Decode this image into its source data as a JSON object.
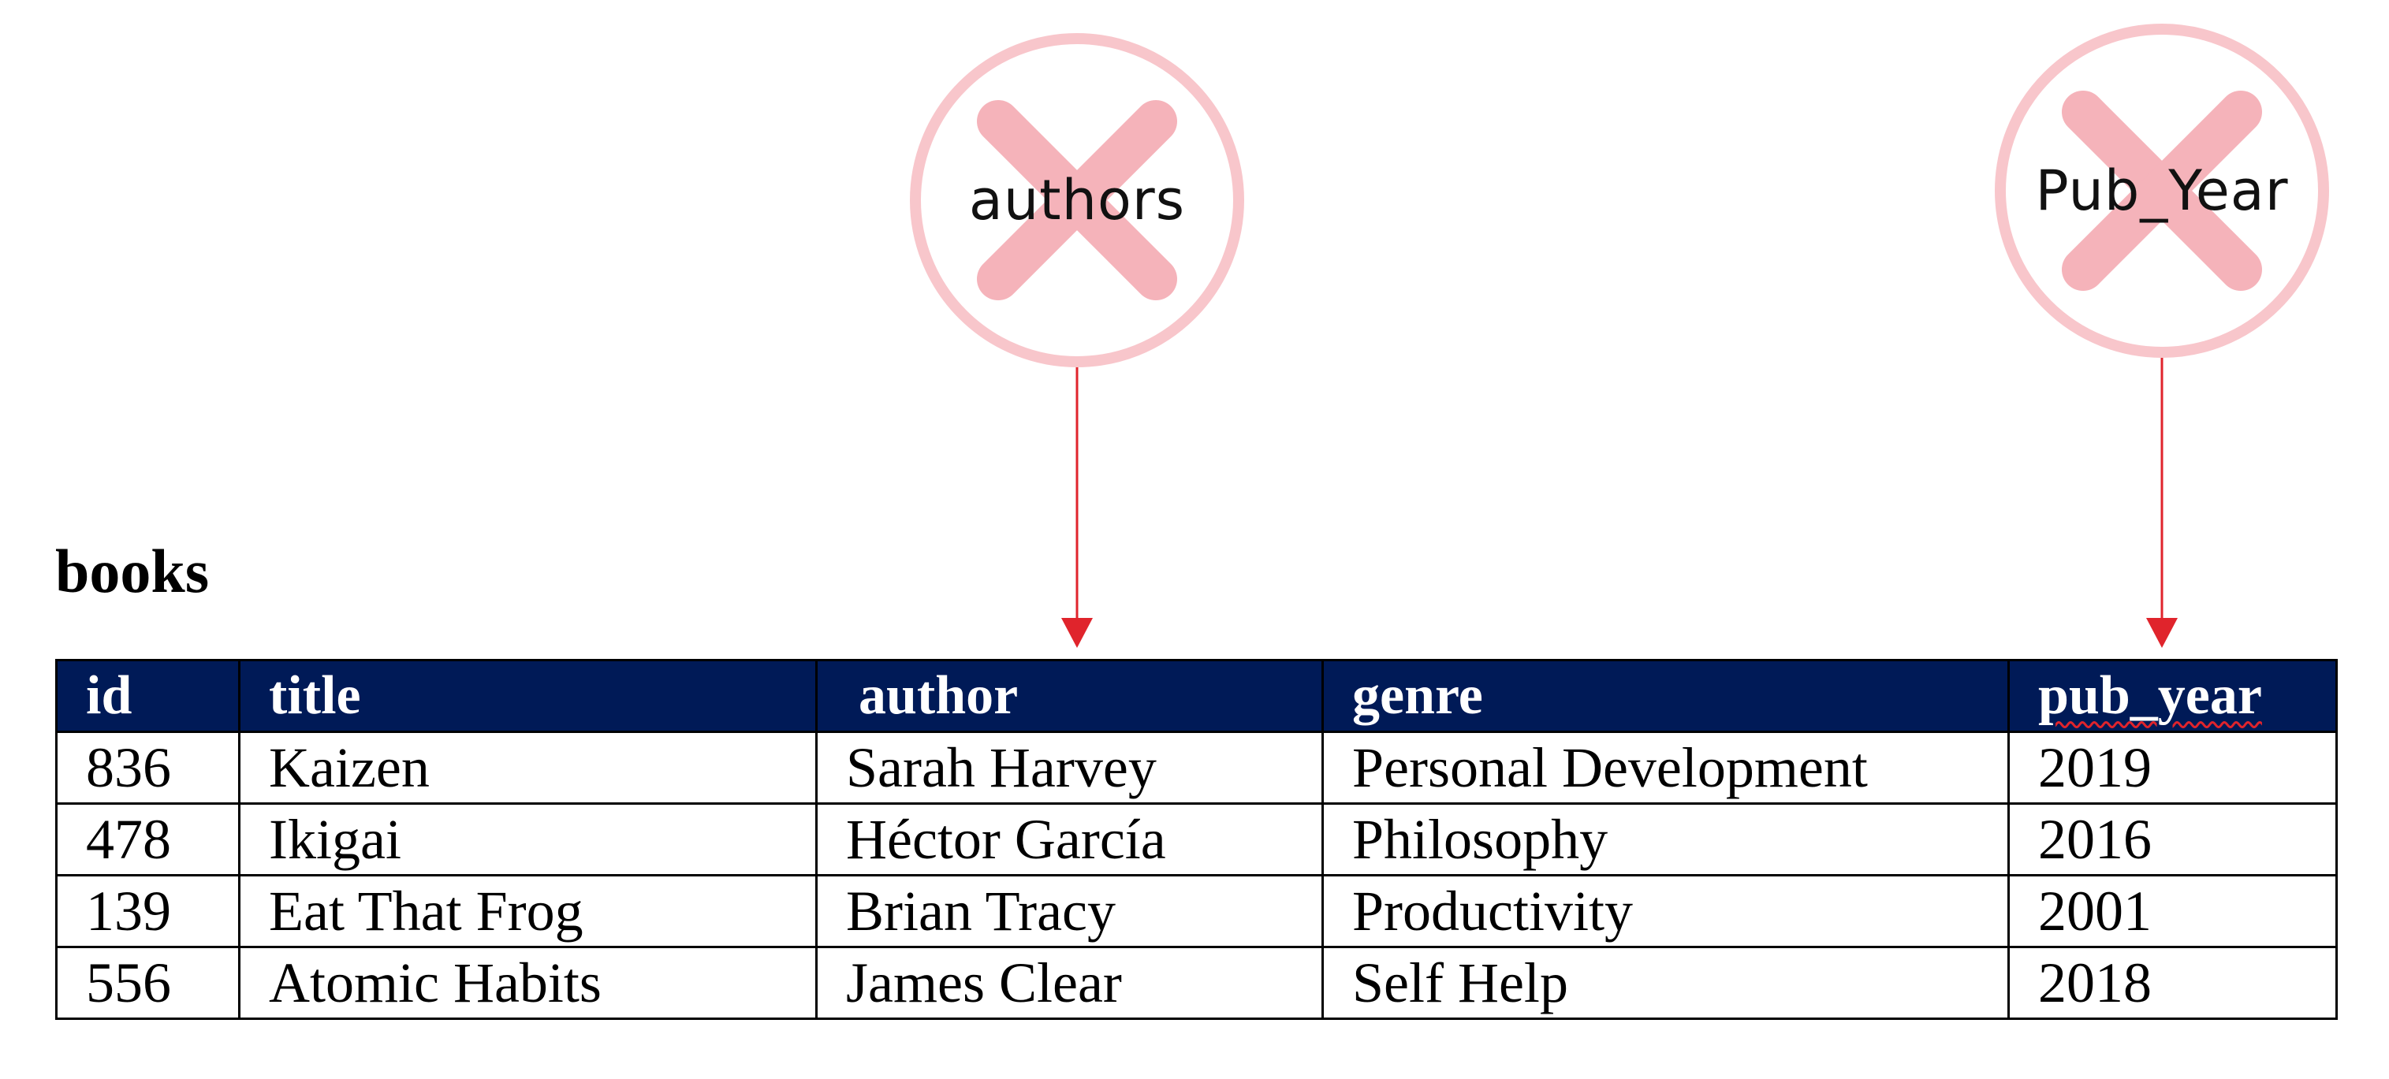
{
  "markers": {
    "authors": {
      "label": "authors",
      "symbol": "x-mark-icon"
    },
    "pub_year": {
      "label": "Pub_Year",
      "symbol": "x-mark-icon"
    }
  },
  "colors": {
    "marker_ring": "#f8c6cb",
    "marker_x": "#f5b3ba",
    "arrow": "#e0242c",
    "header_background": "#001a57",
    "header_text": "#ffffff",
    "spellcheck_underline": "#e0242c"
  },
  "table": {
    "title": "books",
    "columns": [
      "id",
      "title",
      "author",
      "genre",
      "pub_year"
    ],
    "rows": [
      [
        "836",
        "Kaizen",
        "Sarah Harvey",
        "Personal Development",
        "2019"
      ],
      [
        "478",
        "Ikigai",
        "Héctor García",
        "Philosophy",
        "2016"
      ],
      [
        "139",
        "Eat That Frog",
        "Brian Tracy",
        "Productivity",
        "2001"
      ],
      [
        "556",
        "Atomic Habits",
        "James Clear",
        "Self Help",
        "2018"
      ]
    ]
  }
}
